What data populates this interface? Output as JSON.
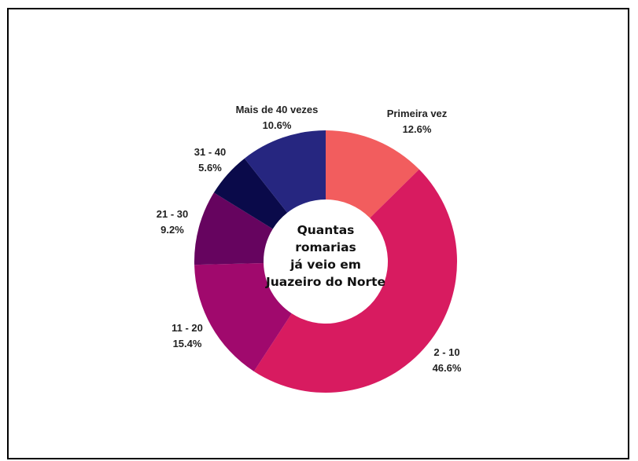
{
  "chart_data": {
    "type": "pie",
    "title_lines": [
      "Quantas",
      "romarias",
      "já veio em",
      "Juazeiro do Norte"
    ],
    "slices": [
      {
        "label": "Primeira vez",
        "value_text": "12.6%",
        "value": 12.6,
        "color": "#F25D5E"
      },
      {
        "label": "2 - 10",
        "value_text": "46.6%",
        "value": 46.6,
        "color": "#D81B60"
      },
      {
        "label": "11 - 20",
        "value_text": "15.4%",
        "value": 15.4,
        "color": "#A0096D"
      },
      {
        "label": "21 - 30",
        "value_text": "9.2%",
        "value": 9.2,
        "color": "#66045F"
      },
      {
        "label": "31 - 40",
        "value_text": "5.6%",
        "value": 5.6,
        "color": "#0A0A4A"
      },
      {
        "label": "Mais de 40 vezes",
        "value_text": "10.6%",
        "value": 10.6,
        "color": "#262680"
      }
    ],
    "legend": "none",
    "donut": true
  }
}
